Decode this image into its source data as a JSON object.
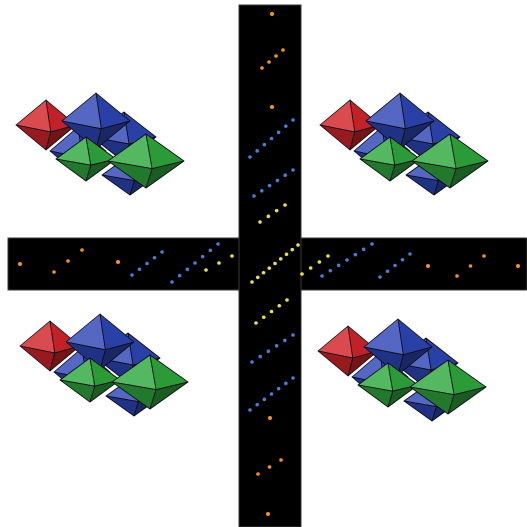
{
  "figure": {
    "description_visible_text": "",
    "background": "#ffffff",
    "band_color": "#000000",
    "band_border": "#3a3a3a",
    "colors": {
      "red": "#d2242a",
      "blue": "#2d46b6",
      "green": "#2fa83d",
      "orange": "#f2931d",
      "spot_blue": "#4a7bd8",
      "yellow": "#e8e23a"
    },
    "octahedron_clusters": [
      {
        "id": "top-left",
        "octahedra": [
          "red",
          "blue",
          "blue",
          "blue",
          "green",
          "green",
          "blue"
        ]
      },
      {
        "id": "top-right",
        "octahedra": [
          "red",
          "blue",
          "blue",
          "blue",
          "green",
          "green",
          "blue"
        ]
      },
      {
        "id": "bottom-left",
        "octahedra": [
          "red",
          "blue",
          "blue",
          "blue",
          "green",
          "green",
          "blue"
        ]
      },
      {
        "id": "bottom-right",
        "octahedra": [
          "red",
          "blue",
          "blue",
          "blue",
          "green",
          "green",
          "blue"
        ]
      }
    ],
    "diffraction_patterns": [
      {
        "id": "vertical-band",
        "orientation": "vertical"
      },
      {
        "id": "horizontal-band",
        "orientation": "horizontal"
      }
    ]
  }
}
